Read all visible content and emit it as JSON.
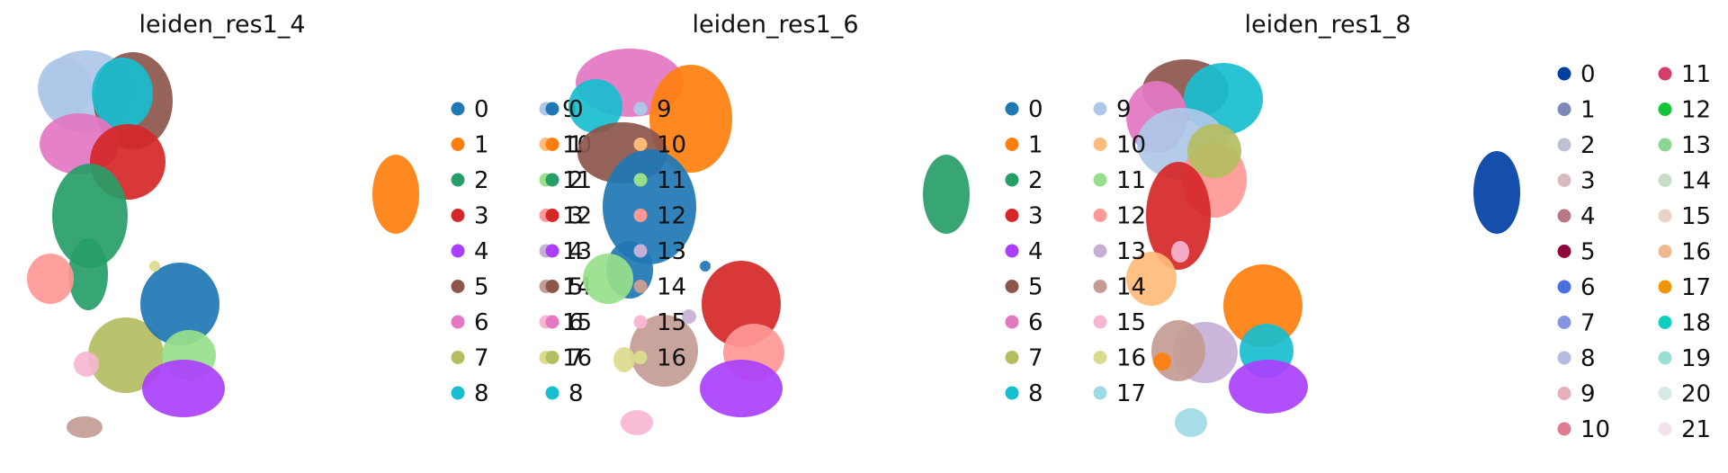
{
  "chart_data": [
    {
      "type": "scatter",
      "title": "leiden_res1_4",
      "xlabel": "",
      "ylabel": "",
      "grid": false,
      "legend": {
        "placement": "right",
        "columns": 2
      },
      "categories": [
        "0",
        "1",
        "2",
        "3",
        "4",
        "5",
        "6",
        "7",
        "8",
        "9",
        "10",
        "11",
        "12",
        "13",
        "14",
        "15",
        "16"
      ],
      "colors": [
        "#1f77b4",
        "#ff7f0e",
        "#279e68",
        "#d62728",
        "#aa40fc",
        "#8c564b",
        "#e377c2",
        "#b5bd61",
        "#17becf",
        "#aec7e8",
        "#ffbb78",
        "#98df8a",
        "#ff9896",
        "#c5b0d5",
        "#c49c94",
        "#f7b6d2",
        "#dbdb8d"
      ]
    },
    {
      "type": "scatter",
      "title": "leiden_res1_6",
      "xlabel": "",
      "ylabel": "",
      "grid": false,
      "legend": {
        "placement": "right",
        "columns": 2
      },
      "categories": [
        "0",
        "1",
        "2",
        "3",
        "4",
        "5",
        "6",
        "7",
        "8",
        "9",
        "10",
        "11",
        "12",
        "13",
        "14",
        "15",
        "16"
      ],
      "colors": [
        "#1f77b4",
        "#ff7f0e",
        "#279e68",
        "#d62728",
        "#aa40fc",
        "#8c564b",
        "#e377c2",
        "#b5bd61",
        "#17becf",
        "#aec7e8",
        "#ffbb78",
        "#98df8a",
        "#ff9896",
        "#c5b0d5",
        "#c49c94",
        "#f7b6d2",
        "#dbdb8d"
      ]
    },
    {
      "type": "scatter",
      "title": "leiden_res1_8",
      "xlabel": "",
      "ylabel": "",
      "grid": false,
      "legend": {
        "placement": "right",
        "columns": 2
      },
      "categories": [
        "0",
        "1",
        "2",
        "3",
        "4",
        "5",
        "6",
        "7",
        "8",
        "9",
        "10",
        "11",
        "12",
        "13",
        "14",
        "15",
        "16",
        "17"
      ],
      "colors": [
        "#1f77b4",
        "#ff7f0e",
        "#279e68",
        "#d62728",
        "#aa40fc",
        "#8c564b",
        "#e377c2",
        "#b5bd61",
        "#17becf",
        "#aec7e8",
        "#ffbb78",
        "#98df8a",
        "#ff9896",
        "#c5b0d5",
        "#c49c94",
        "#f7b6d2",
        "#dbdb8d",
        "#9edae5"
      ]
    },
    {
      "type": "scatter",
      "title": "",
      "xlabel": "",
      "ylabel": "",
      "grid": false,
      "legend": {
        "placement": "right",
        "columns": 2
      },
      "categories": [
        "0",
        "1",
        "2",
        "3",
        "4",
        "5",
        "6",
        "7",
        "8",
        "9",
        "10",
        "11",
        "12",
        "13",
        "14",
        "15",
        "16",
        "17",
        "18",
        "19",
        "20",
        "21"
      ],
      "colors": [
        "#023fa5",
        "#7d87b9",
        "#bec1d4",
        "#d6bcc0",
        "#bb7784",
        "#8e063b",
        "#4a6fe3",
        "#8595e1",
        "#b5bbe3",
        "#e6afb9",
        "#e07b91",
        "#d33f6a",
        "#11c638",
        "#8dd593",
        "#c6dec7",
        "#ead3c6",
        "#f0b98d",
        "#ef9708",
        "#0fcfc0",
        "#9cded6",
        "#d5eae7",
        "#f3e1eb"
      ]
    }
  ]
}
